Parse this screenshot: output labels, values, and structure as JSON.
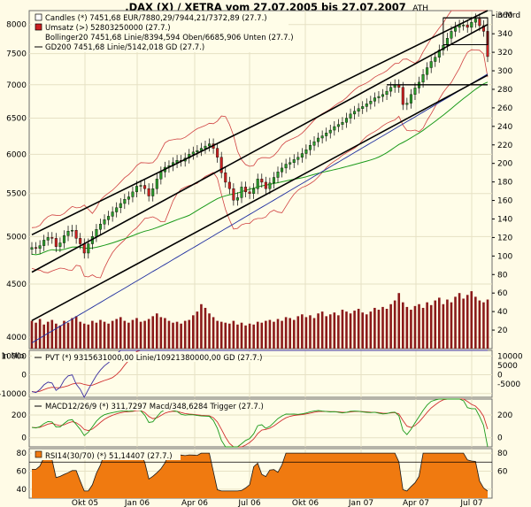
{
  "title": ".DAX (X) / XETRA vom 27.07.2005 bis 27.07.2007",
  "colors": {
    "background": "#fffbe6",
    "panel": "#fffde8",
    "grid": "#e6e1c4",
    "candle_up": "#2a9a2a",
    "candle_down": "#cc2020",
    "volume": "#8b1a1a",
    "bollinger": "#d04040",
    "gd200": "#1a9a1a",
    "channel": "#000000",
    "pvt": "#3a2fa0",
    "pvt_gd": "#d03030",
    "macd": "#1a9a1a",
    "macd_trigger": "#d03030",
    "rsi_fill": "#f07a10",
    "rsi_line": "#1a1a1a"
  },
  "main_panel": {
    "legend": [
      {
        "icon": "white-box-icon",
        "text": "Candles (*) 7451,68 EUR/7880,29/7944,21/7372,89 (27.7.)"
      },
      {
        "icon": "red-box-icon",
        "text": "Umsatz (>) 52803250000 (27.7.)"
      },
      {
        "icon": "none",
        "text": "Bollinger20 7451,68 Linie/8394,594 Oben/6685,906 Unten (27.7.)"
      },
      {
        "icon": "line-icon",
        "text": "GD200 7451,68 Linie/5142,018 GD (27.7.)"
      }
    ],
    "ath_label": "ATH",
    "right_axis_unit": "in Mrd",
    "left_ticks": [
      "8000",
      "7500",
      "7000",
      "6500",
      "6000",
      "5500",
      "5000",
      "4500",
      "4000"
    ],
    "right_ticks": [
      "360",
      "340",
      "320",
      "300",
      "280",
      "260",
      "240",
      "220",
      "200",
      "180",
      "160",
      "140",
      "120",
      "100",
      "80",
      "60",
      "40",
      "20"
    ]
  },
  "pvt_panel": {
    "unit": "in Mio",
    "legend": "PVT (*) 9315631000,00 Linie/10921380000,00 GD (27.7.)",
    "left_ticks": [
      "10000",
      "0",
      "-10000"
    ],
    "right_ticks": [
      "10000",
      "5000",
      "0",
      "-5000"
    ]
  },
  "macd_panel": {
    "legend": "MACD12/26/9 (*) 311,7297 Macd/348,6284 Trigger (27.7.)",
    "left_ticks": [
      "200",
      "0"
    ],
    "right_ticks": [
      "200",
      "0"
    ]
  },
  "rsi_panel": {
    "legend": "RSI14(30/70) (*) 51,14407 (27.7.)",
    "left_ticks": [
      "80",
      "60",
      "40"
    ],
    "right_ticks": [
      "80",
      "60"
    ]
  },
  "x_axis_labels": [
    "Okt 05",
    "Jan 06",
    "Apr 06",
    "Jul 06",
    "Okt 06",
    "Jan 07",
    "Apr 07",
    "Jul 07"
  ],
  "chart_data": {
    "type": "candlestick",
    "title": ".DAX (X) / XETRA vom 27.07.2005 bis 27.07.2007",
    "x_range": [
      "27.07.2005",
      "27.07.2007"
    ],
    "ylim": [
      3900,
      8250
    ],
    "y_scale": "log",
    "y2_unit": "in Mrd",
    "y2_lim": [
      0,
      365
    ],
    "weekly_close": [
      4880,
      4870,
      4900,
      4960,
      4990,
      4980,
      4890,
      4930,
      5010,
      5060,
      5070,
      4980,
      4920,
      4820,
      4920,
      5000,
      5080,
      5140,
      5190,
      5230,
      5280,
      5330,
      5380,
      5430,
      5460,
      5520,
      5590,
      5600,
      5560,
      5470,
      5560,
      5680,
      5770,
      5830,
      5850,
      5890,
      5920,
      5910,
      5950,
      6000,
      6030,
      6050,
      6080,
      6110,
      6140,
      6080,
      5960,
      5760,
      5640,
      5560,
      5420,
      5450,
      5580,
      5520,
      5500,
      5560,
      5680,
      5640,
      5560,
      5630,
      5700,
      5770,
      5820,
      5870,
      5890,
      5930,
      5960,
      6010,
      6060,
      6120,
      6170,
      6220,
      6250,
      6290,
      6330,
      6380,
      6410,
      6440,
      6500,
      6560,
      6600,
      6640,
      6670,
      6710,
      6750,
      6800,
      6820,
      6850,
      6900,
      6960,
      7000,
      6960,
      6700,
      6720,
      6850,
      6950,
      7040,
      7160,
      7270,
      7370,
      7440,
      7560,
      7640,
      7760,
      7880,
      7950,
      7990,
      7990,
      7950,
      8040,
      8100,
      7980,
      7880,
      7451
    ],
    "weekly_volume_mrd": [
      30,
      28,
      32,
      26,
      29,
      31,
      27,
      25,
      30,
      28,
      33,
      35,
      29,
      27,
      26,
      30,
      28,
      31,
      29,
      27,
      30,
      32,
      34,
      30,
      28,
      31,
      33,
      29,
      30,
      32,
      35,
      38,
      34,
      33,
      30,
      28,
      29,
      27,
      30,
      31,
      36,
      40,
      48,
      44,
      38,
      34,
      30,
      29,
      28,
      27,
      30,
      26,
      28,
      25,
      27,
      26,
      29,
      28,
      30,
      31,
      29,
      32,
      30,
      34,
      33,
      31,
      35,
      37,
      34,
      36,
      33,
      38,
      40,
      35,
      37,
      39,
      36,
      42,
      40,
      38,
      41,
      43,
      39,
      37,
      40,
      44,
      42,
      45,
      43,
      48,
      52,
      60,
      50,
      45,
      42,
      46,
      48,
      44,
      50,
      47,
      52,
      55,
      48,
      53,
      50,
      56,
      60,
      54,
      58,
      62,
      56,
      52,
      50,
      53
    ],
    "series": [
      {
        "name": "Bollinger20 Oben"
      },
      {
        "name": "Bollinger20 Unten"
      },
      {
        "name": "GD200"
      }
    ],
    "pvt_ylim": [
      -12000,
      13000
    ],
    "macd_ylim": [
      -80,
      340
    ],
    "rsi_ylim": [
      30,
      85
    ]
  }
}
